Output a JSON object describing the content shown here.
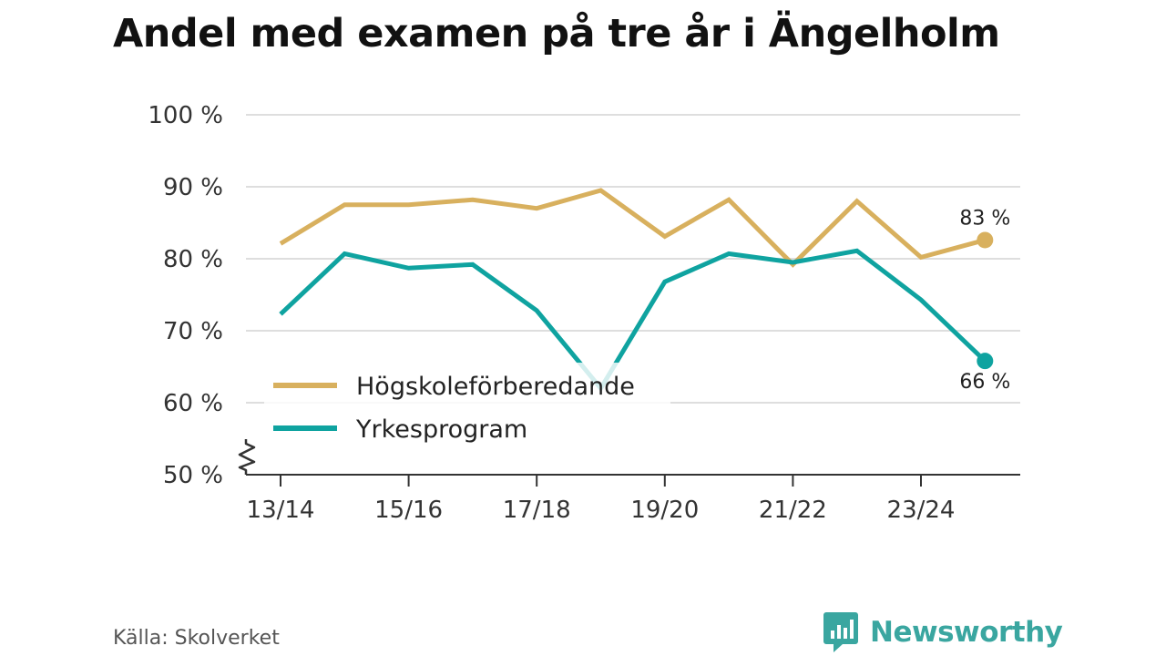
{
  "chart_data": {
    "type": "line",
    "title": "Andel med examen på tre år i Ängelholm",
    "categories": [
      "13/14",
      "14/15",
      "15/16",
      "16/17",
      "17/18",
      "18/19",
      "19/20",
      "20/21",
      "21/22",
      "22/23",
      "23/24",
      "24/25"
    ],
    "x_tick_labels": [
      "13/14",
      "15/16",
      "17/18",
      "19/20",
      "21/22",
      "23/24"
    ],
    "y_tick_labels": [
      "50 %",
      "60 %",
      "70 %",
      "80 %",
      "90 %",
      "100 %"
    ],
    "y_ticks": [
      50,
      60,
      70,
      80,
      90,
      100
    ],
    "ylim": [
      50,
      100
    ],
    "y_axis_break": true,
    "grid": true,
    "legend_position": "bottom-left",
    "series": [
      {
        "name": "Högskoleförberedande",
        "color": "#d8b05e",
        "values": [
          82.1,
          87.5,
          87.5,
          88.2,
          87.0,
          89.5,
          83.1,
          88.2,
          79.2,
          88.0,
          80.2,
          82.6
        ],
        "end_label": "83 %"
      },
      {
        "name": "Yrkesprogram",
        "color": "#0fa3a0",
        "values": [
          72.3,
          80.7,
          78.7,
          79.2,
          72.8,
          62.0,
          76.8,
          80.7,
          79.5,
          81.1,
          74.3,
          65.8
        ],
        "end_label": "66 %"
      }
    ]
  },
  "source": "Källa: Skolverket",
  "brand": {
    "name": "Newsworthy",
    "color": "#3aa6a0"
  }
}
